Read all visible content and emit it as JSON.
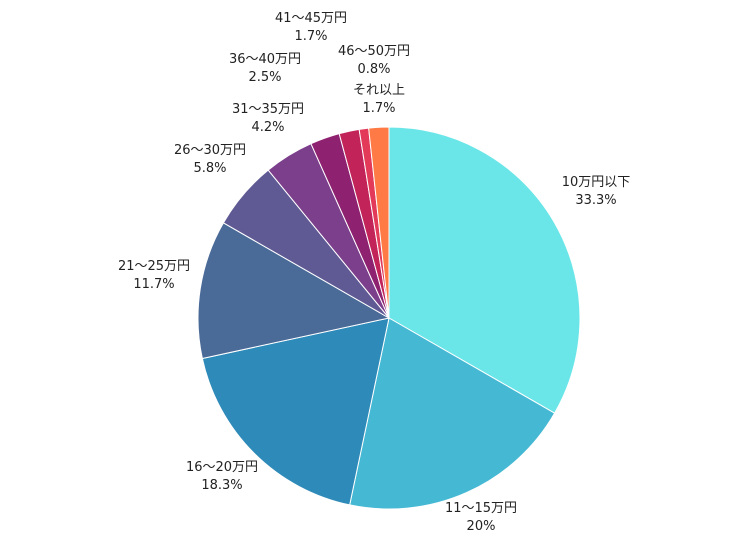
{
  "chart_data": {
    "type": "pie",
    "title": "",
    "start": "12 o'clock",
    "direction": "clockwise",
    "slices": [
      {
        "name": "10万円以下",
        "value_label": "33.3%",
        "value": 33.3,
        "color": "#6ae6e8"
      },
      {
        "name": "11～15万円",
        "value_label": "20%",
        "value": 20.0,
        "color": "#45b8d4"
      },
      {
        "name": "16～20万円",
        "value_label": "18.3%",
        "value": 18.3,
        "color": "#2e8ab8"
      },
      {
        "name": "21～25万円",
        "value_label": "11.7%",
        "value": 11.7,
        "color": "#4a6a98"
      },
      {
        "name": "26～30万円",
        "value_label": "5.8%",
        "value": 5.8,
        "color": "#5f5a94"
      },
      {
        "name": "31～35万円",
        "value_label": "4.2%",
        "value": 4.2,
        "color": "#7c3f8c"
      },
      {
        "name": "36～40万円",
        "value_label": "2.5%",
        "value": 2.5,
        "color": "#8e2270"
      },
      {
        "name": "41～45万円",
        "value_label": "1.7%",
        "value": 1.7,
        "color": "#c2245a"
      },
      {
        "name": "46～50万円",
        "value_label": "0.8%",
        "value": 0.8,
        "color": "#e23a58"
      },
      {
        "name": "それ以上",
        "value_label": "1.7%",
        "value": 1.7,
        "color": "#ff7a45"
      }
    ]
  }
}
